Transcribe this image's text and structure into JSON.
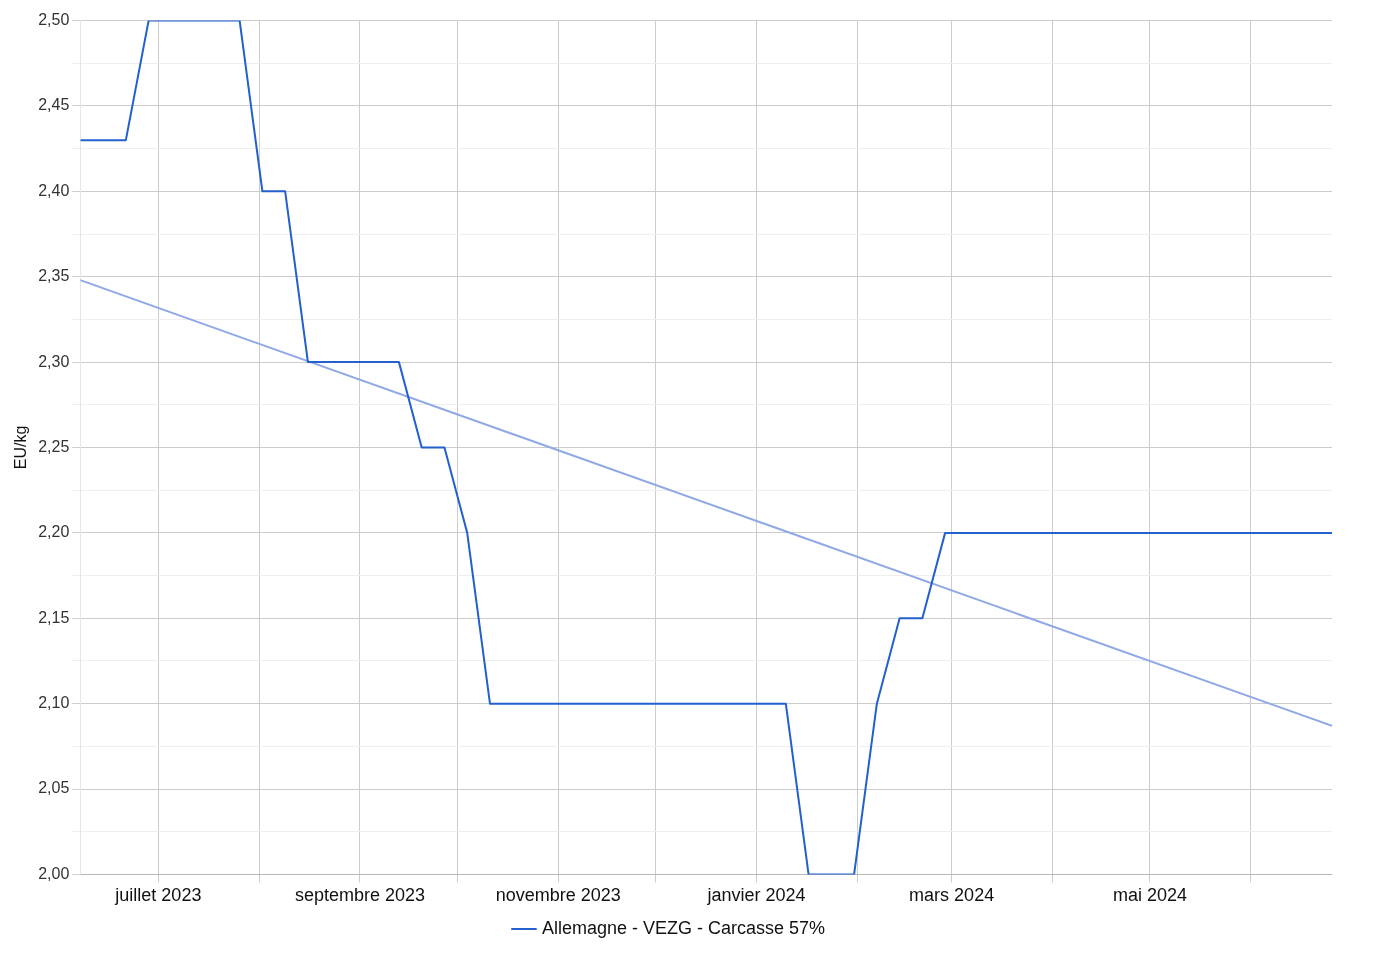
{
  "chart_data": {
    "type": "line",
    "ylabel": "EU/kg",
    "legend": "bottom",
    "grid": true,
    "marker": "none",
    "line_style": "solid",
    "xlim": [
      "2023-06-07",
      "2024-06-26"
    ],
    "xticks": [
      {
        "value": "2023-07-01",
        "label": "juillet 2023"
      },
      {
        "value": "2023-08-01",
        "label": null
      },
      {
        "value": "2023-09-01",
        "label": "septembre 2023"
      },
      {
        "value": "2023-10-01",
        "label": null
      },
      {
        "value": "2023-11-01",
        "label": "novembre 2023"
      },
      {
        "value": "2023-12-01",
        "label": null
      },
      {
        "value": "2024-01-01",
        "label": "janvier 2024"
      },
      {
        "value": "2024-02-01",
        "label": null
      },
      {
        "value": "2024-03-01",
        "label": "mars 2024"
      },
      {
        "value": "2024-04-01",
        "label": null
      },
      {
        "value": "2024-05-01",
        "label": "mai 2024"
      },
      {
        "value": "2024-06-01",
        "label": null
      }
    ],
    "ylim": [
      2.0,
      2.5
    ],
    "yticks": [
      {
        "value": 2.0,
        "label": "2,00"
      },
      {
        "value": 2.025,
        "label": null
      },
      {
        "value": 2.05,
        "label": "2,05"
      },
      {
        "value": 2.075,
        "label": null
      },
      {
        "value": 2.1,
        "label": "2,10"
      },
      {
        "value": 2.125,
        "label": null
      },
      {
        "value": 2.15,
        "label": "2,15"
      },
      {
        "value": 2.175,
        "label": null
      },
      {
        "value": 2.2,
        "label": "2,20"
      },
      {
        "value": 2.225,
        "label": null
      },
      {
        "value": 2.25,
        "label": "2,25"
      },
      {
        "value": 2.275,
        "label": null
      },
      {
        "value": 2.3,
        "label": "2,30"
      },
      {
        "value": 2.325,
        "label": null
      },
      {
        "value": 2.35,
        "label": "2,35"
      },
      {
        "value": 2.375,
        "label": null
      },
      {
        "value": 2.4,
        "label": "2,40"
      },
      {
        "value": 2.425,
        "label": null
      },
      {
        "value": 2.45,
        "label": "2,45"
      },
      {
        "value": 2.475,
        "label": null
      },
      {
        "value": 2.5,
        "label": "2,50"
      }
    ],
    "series": [
      {
        "name": "Allemagne - VEZG - Carcasse 57%",
        "color": "#2260d0",
        "x": [
          "2023-06-07",
          "2023-06-21",
          "2023-06-28",
          "2023-07-26",
          "2023-08-02",
          "2023-08-09",
          "2023-08-16",
          "2023-09-13",
          "2023-09-20",
          "2023-09-27",
          "2023-10-04",
          "2023-10-11",
          "2024-01-10",
          "2024-01-17",
          "2024-01-31",
          "2024-02-07",
          "2024-02-14",
          "2024-02-21",
          "2024-02-28",
          "2024-06-26"
        ],
        "values": [
          2.43,
          2.43,
          2.5,
          2.5,
          2.4,
          2.4,
          2.3,
          2.3,
          2.25,
          2.25,
          2.2,
          2.1,
          2.1,
          2.0,
          2.0,
          2.1,
          2.15,
          2.15,
          2.2,
          2.2
        ]
      },
      {
        "type": "line",
        "color": "#8fa8e6",
        "x": [
          "2023-06-07",
          "2024-06-26"
        ],
        "values": [
          2.348,
          2.087
        ]
      }
    ]
  }
}
